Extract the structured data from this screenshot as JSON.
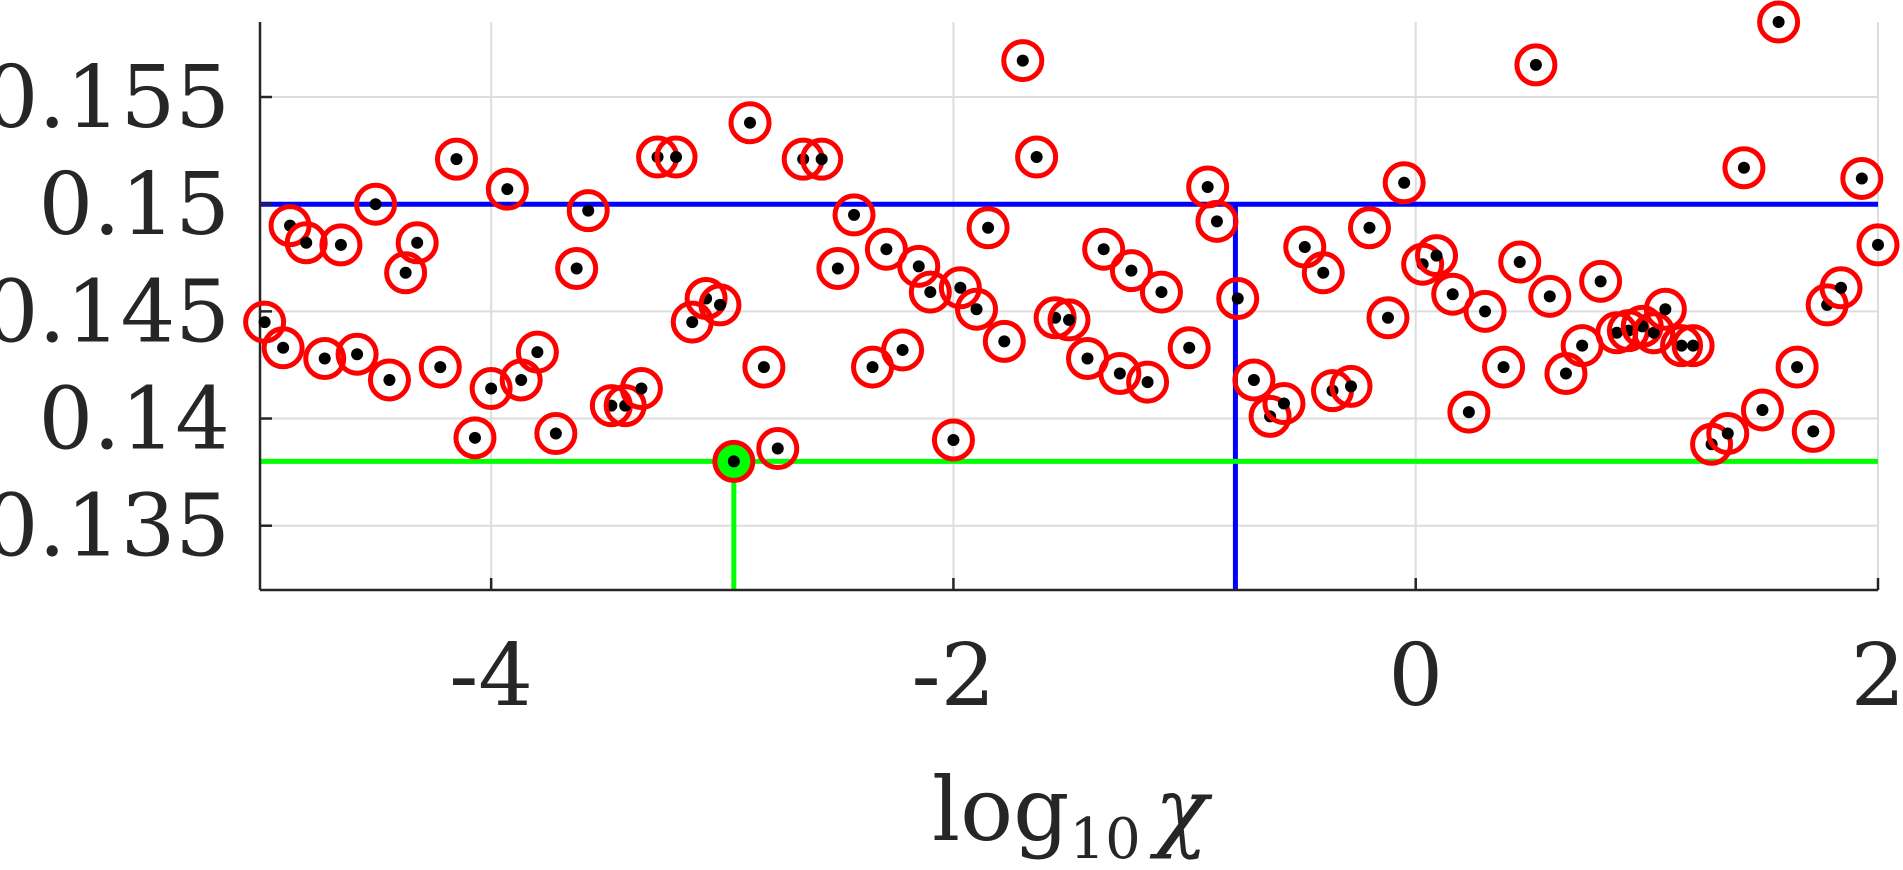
{
  "chart_data": {
    "type": "scatter",
    "title": "",
    "xlabel_main": "log",
    "xlabel_sub": "10",
    "xlabel_var": "χ",
    "ylabel": "",
    "xlim": [
      -5,
      2
    ],
    "ylim": [
      0.132,
      0.1585
    ],
    "xticks": [
      -4,
      -2,
      0,
      2
    ],
    "xtick_labels": [
      "-4",
      "-2",
      "0",
      "2"
    ],
    "yticks": [
      0.135,
      0.14,
      0.145,
      0.15,
      0.155
    ],
    "ytick_labels": [
      "0.135",
      "0.14",
      "0.145",
      "0.15",
      "0.155"
    ],
    "grid": true,
    "colors": {
      "marker_ring": "#ff0000",
      "marker_dot": "#000000",
      "best_fill": "#00ff00",
      "best_line": "#00ff00",
      "reference_line": "#0000ff",
      "grid": "#dddddd",
      "axis": "#262626"
    },
    "reference": {
      "x": -0.78,
      "y": 0.15
    },
    "best": {
      "x": -2.95,
      "y": 0.138
    },
    "points": [
      {
        "x": -4.98,
        "y": 0.1445
      },
      {
        "x": -4.9,
        "y": 0.1433
      },
      {
        "x": -4.87,
        "y": 0.149
      },
      {
        "x": -4.8,
        "y": 0.1482
      },
      {
        "x": -4.72,
        "y": 0.1428
      },
      {
        "x": -4.65,
        "y": 0.1481
      },
      {
        "x": -4.58,
        "y": 0.143
      },
      {
        "x": -4.5,
        "y": 0.15
      },
      {
        "x": -4.44,
        "y": 0.1418
      },
      {
        "x": -4.37,
        "y": 0.1468
      },
      {
        "x": -4.32,
        "y": 0.1482
      },
      {
        "x": -4.22,
        "y": 0.1424
      },
      {
        "x": -4.15,
        "y": 0.1521
      },
      {
        "x": -4.07,
        "y": 0.1391
      },
      {
        "x": -4.0,
        "y": 0.1414
      },
      {
        "x": -3.93,
        "y": 0.1507
      },
      {
        "x": -3.87,
        "y": 0.1418
      },
      {
        "x": -3.8,
        "y": 0.1431
      },
      {
        "x": -3.72,
        "y": 0.1393
      },
      {
        "x": -3.63,
        "y": 0.147
      },
      {
        "x": -3.58,
        "y": 0.1497
      },
      {
        "x": -3.48,
        "y": 0.1406
      },
      {
        "x": -3.42,
        "y": 0.1406
      },
      {
        "x": -3.35,
        "y": 0.1414
      },
      {
        "x": -3.28,
        "y": 0.1522
      },
      {
        "x": -3.2,
        "y": 0.1522
      },
      {
        "x": -3.13,
        "y": 0.1445
      },
      {
        "x": -3.07,
        "y": 0.1456
      },
      {
        "x": -3.01,
        "y": 0.1453
      },
      {
        "x": -2.88,
        "y": 0.1538
      },
      {
        "x": -2.82,
        "y": 0.1424
      },
      {
        "x": -2.76,
        "y": 0.1386
      },
      {
        "x": -2.65,
        "y": 0.1521
      },
      {
        "x": -2.57,
        "y": 0.1521
      },
      {
        "x": -2.5,
        "y": 0.147
      },
      {
        "x": -2.43,
        "y": 0.1495
      },
      {
        "x": -2.35,
        "y": 0.1424
      },
      {
        "x": -2.29,
        "y": 0.1479
      },
      {
        "x": -2.22,
        "y": 0.1432
      },
      {
        "x": -2.15,
        "y": 0.1471
      },
      {
        "x": -2.1,
        "y": 0.1459
      },
      {
        "x": -2.0,
        "y": 0.139
      },
      {
        "x": -1.97,
        "y": 0.1461
      },
      {
        "x": -1.9,
        "y": 0.1451
      },
      {
        "x": -1.85,
        "y": 0.1489
      },
      {
        "x": -1.78,
        "y": 0.1436
      },
      {
        "x": -1.7,
        "y": 0.1567
      },
      {
        "x": -1.64,
        "y": 0.1522
      },
      {
        "x": -1.56,
        "y": 0.1447
      },
      {
        "x": -1.5,
        "y": 0.1446
      },
      {
        "x": -1.42,
        "y": 0.1428
      },
      {
        "x": -1.35,
        "y": 0.1479
      },
      {
        "x": -1.28,
        "y": 0.1421
      },
      {
        "x": -1.23,
        "y": 0.1469
      },
      {
        "x": -1.16,
        "y": 0.1417
      },
      {
        "x": -1.1,
        "y": 0.1459
      },
      {
        "x": -0.98,
        "y": 0.1433
      },
      {
        "x": -0.9,
        "y": 0.1508
      },
      {
        "x": -0.86,
        "y": 0.1492
      },
      {
        "x": -0.77,
        "y": 0.1456
      },
      {
        "x": -0.7,
        "y": 0.1418
      },
      {
        "x": -0.63,
        "y": 0.1401
      },
      {
        "x": -0.57,
        "y": 0.1407
      },
      {
        "x": -0.48,
        "y": 0.148
      },
      {
        "x": -0.4,
        "y": 0.1468
      },
      {
        "x": -0.36,
        "y": 0.1413
      },
      {
        "x": -0.28,
        "y": 0.1415
      },
      {
        "x": -0.2,
        "y": 0.1489
      },
      {
        "x": -0.12,
        "y": 0.1447
      },
      {
        "x": -0.05,
        "y": 0.151
      },
      {
        "x": 0.03,
        "y": 0.1472
      },
      {
        "x": 0.09,
        "y": 0.1476
      },
      {
        "x": 0.16,
        "y": 0.1458
      },
      {
        "x": 0.23,
        "y": 0.1403
      },
      {
        "x": 0.3,
        "y": 0.145
      },
      {
        "x": 0.38,
        "y": 0.1424
      },
      {
        "x": 0.45,
        "y": 0.1473
      },
      {
        "x": 0.52,
        "y": 0.1565
      },
      {
        "x": 0.58,
        "y": 0.1457
      },
      {
        "x": 0.65,
        "y": 0.1421
      },
      {
        "x": 0.72,
        "y": 0.1434
      },
      {
        "x": 0.8,
        "y": 0.1464
      },
      {
        "x": 0.87,
        "y": 0.144
      },
      {
        "x": 0.92,
        "y": 0.1441
      },
      {
        "x": 0.98,
        "y": 0.1443
      },
      {
        "x": 1.03,
        "y": 0.144
      },
      {
        "x": 1.08,
        "y": 0.1451
      },
      {
        "x": 1.15,
        "y": 0.1434
      },
      {
        "x": 1.2,
        "y": 0.1434
      },
      {
        "x": 1.28,
        "y": 0.1388
      },
      {
        "x": 1.35,
        "y": 0.1393
      },
      {
        "x": 1.42,
        "y": 0.1517
      },
      {
        "x": 1.5,
        "y": 0.1404
      },
      {
        "x": 1.57,
        "y": 0.1585
      },
      {
        "x": 1.65,
        "y": 0.1424
      },
      {
        "x": 1.72,
        "y": 0.1394
      },
      {
        "x": 1.78,
        "y": 0.1453
      },
      {
        "x": 1.84,
        "y": 0.1461
      },
      {
        "x": 1.93,
        "y": 0.1512
      },
      {
        "x": 2.0,
        "y": 0.1481
      }
    ]
  }
}
